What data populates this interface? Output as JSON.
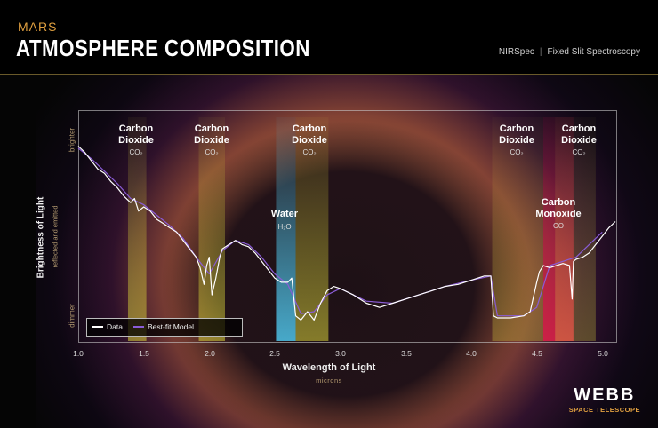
{
  "header": {
    "subtitle": "MARS",
    "title": "ATMOSPHERE COMPOSITION",
    "instrument": "NIRSpec",
    "mode": "Fixed Slit Spectroscopy"
  },
  "branding": {
    "name": "WEBB",
    "tagline": "SPACE TELESCOPE"
  },
  "colors": {
    "accent": "#e0a040",
    "data_line": "#ffffff",
    "model_line": "#8a5cd6",
    "co2_band": "#d7d23a",
    "h2o_band": "#4ec3e8",
    "co_band": "#e0204a"
  },
  "chart_data": {
    "type": "line",
    "xlabel": "Wavelength of Light",
    "xunits": "microns",
    "ylabel": "Brightness of Light",
    "ylabel_sub": "reflected and emitted",
    "y_top_label": "brighter",
    "y_bottom_label": "dimmer",
    "xlim": [
      1.0,
      5.1
    ],
    "ylim": [
      0,
      100
    ],
    "x_ticks": [
      "1.0",
      "1.5",
      "2.0",
      "2.5",
      "3.0",
      "3.5",
      "4.0",
      "4.5",
      "5.0"
    ],
    "legend": [
      "Data",
      "Best-fit Model"
    ],
    "legend_position": "bottom-left",
    "bands": [
      {
        "name": "Carbon Dioxide",
        "formula": "CO₂",
        "x0": 1.38,
        "x1": 1.52,
        "color": "co2"
      },
      {
        "name": "Carbon Dioxide",
        "formula": "CO₂",
        "x0": 1.92,
        "x1": 2.12,
        "color": "co2"
      },
      {
        "name": "Water",
        "formula": "H₂O",
        "x0": 2.51,
        "x1": 2.66,
        "color": "h2o"
      },
      {
        "name": "Carbon Dioxide",
        "formula": "CO₂",
        "x0": 2.66,
        "x1": 2.91,
        "color": "co2"
      },
      {
        "name": "Carbon Dioxide",
        "formula": "CO₂",
        "x0": 4.16,
        "x1": 4.55,
        "color": "co2_dim"
      },
      {
        "name": "Carbon Monoxide",
        "formula": "CO",
        "x0": 4.55,
        "x1": 4.78,
        "color": "co"
      },
      {
        "name": "Carbon Dioxide",
        "formula": "CO₂",
        "x0": 4.64,
        "x1": 4.95,
        "color": "co2_dim"
      }
    ],
    "series": [
      {
        "name": "Data",
        "x": [
          1.0,
          1.05,
          1.1,
          1.15,
          1.2,
          1.25,
          1.3,
          1.35,
          1.4,
          1.43,
          1.46,
          1.5,
          1.55,
          1.6,
          1.65,
          1.7,
          1.75,
          1.8,
          1.85,
          1.9,
          1.93,
          1.96,
          1.98,
          2.0,
          2.02,
          2.05,
          2.08,
          2.1,
          2.15,
          2.2,
          2.25,
          2.3,
          2.35,
          2.4,
          2.45,
          2.5,
          2.55,
          2.6,
          2.63,
          2.66,
          2.7,
          2.75,
          2.8,
          2.85,
          2.9,
          2.95,
          3.0,
          3.1,
          3.2,
          3.3,
          3.4,
          3.5,
          3.6,
          3.7,
          3.8,
          3.9,
          4.0,
          4.1,
          4.15,
          4.17,
          4.2,
          4.3,
          4.4,
          4.45,
          4.5,
          4.52,
          4.55,
          4.6,
          4.65,
          4.7,
          4.75,
          4.77,
          4.78,
          4.8,
          4.85,
          4.9,
          4.95,
          5.0,
          5.05,
          5.1
        ],
        "y": [
          93,
          90,
          86,
          82,
          80,
          76,
          73,
          69,
          66,
          68,
          62,
          64,
          62,
          58,
          56,
          54,
          52,
          48,
          44,
          40,
          35,
          27,
          36,
          40,
          22,
          30,
          40,
          44,
          46,
          48,
          46,
          45,
          42,
          38,
          34,
          30,
          28,
          28,
          30,
          12,
          10,
          14,
          10,
          18,
          24,
          26,
          25,
          22,
          18,
          16,
          18,
          20,
          22,
          24,
          26,
          27,
          29,
          31,
          31,
          12,
          11,
          11,
          12,
          14,
          28,
          33,
          36,
          35,
          36,
          37,
          36,
          20,
          38,
          39,
          40,
          42,
          46,
          50,
          54,
          57
        ]
      },
      {
        "name": "Best-fit Model",
        "x": [
          1.0,
          1.1,
          1.2,
          1.3,
          1.4,
          1.5,
          1.6,
          1.7,
          1.8,
          1.9,
          2.0,
          2.1,
          2.2,
          2.3,
          2.4,
          2.5,
          2.6,
          2.7,
          2.8,
          2.9,
          3.0,
          3.2,
          3.4,
          3.6,
          3.8,
          4.0,
          4.15,
          4.2,
          4.4,
          4.5,
          4.6,
          4.8,
          5.0
        ],
        "y": [
          92,
          87,
          81,
          75,
          68,
          65,
          60,
          55,
          49,
          40,
          32,
          43,
          48,
          46,
          40,
          32,
          27,
          13,
          14,
          22,
          25,
          19,
          18,
          22,
          26,
          29,
          31,
          12,
          12,
          16,
          36,
          40,
          52
        ]
      }
    ]
  }
}
